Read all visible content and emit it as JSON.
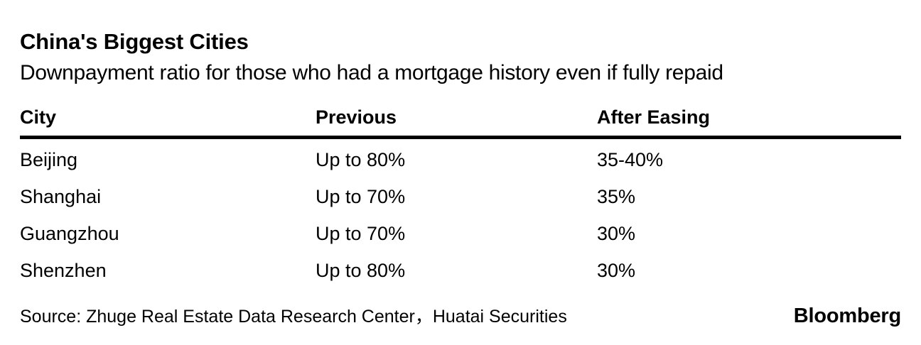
{
  "chart_data": {
    "type": "table",
    "title": "China's Biggest Cities",
    "subtitle": "Downpayment ratio for those who had a mortgage history even if fully repaid",
    "columns": [
      "City",
      "Previous",
      "After Easing"
    ],
    "rows": [
      [
        "Beijing",
        "Up to 80%",
        "35-40%"
      ],
      [
        "Shanghai",
        "Up to 70%",
        "35%"
      ],
      [
        "Guangzhou",
        "Up to 70%",
        "30%"
      ],
      [
        "Shenzhen",
        "Up to 80%",
        "30%"
      ]
    ],
    "source": "Source: Zhuge Real Estate Data Research Center，Huatai Securities"
  },
  "brand": {
    "name": "Bloomberg"
  },
  "colors": {
    "background": "#ffffff",
    "text": "#000000",
    "rule": "#000000"
  }
}
